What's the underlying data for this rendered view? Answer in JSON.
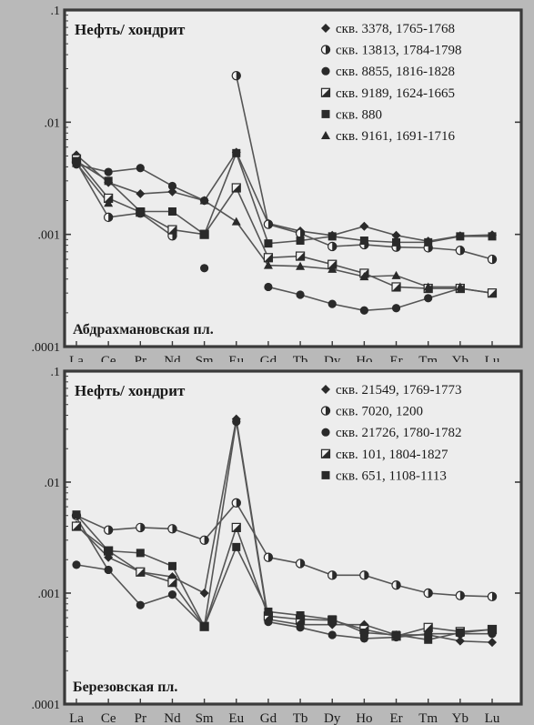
{
  "chart_data": [
    {
      "type": "line",
      "title": "Нефть/ хондрит",
      "subtitle": "Абдрахмановская пл.",
      "y_scale": "log",
      "ylim": [
        0.0001,
        0.1
      ],
      "y_ticks": [
        ".1",
        ".01",
        ".001",
        ".0001"
      ],
      "categories": [
        "La",
        "Ce",
        "Pr",
        "Nd",
        "Sm",
        "Eu",
        "Gd",
        "Tb",
        "Dy",
        "Ho",
        "Er",
        "Tm",
        "Yb",
        "Lu"
      ],
      "legend_position": "top-right",
      "series": [
        {
          "name": "скв. 3378, 1765-1768",
          "marker": "diamond",
          "values": [
            0.0051,
            0.0029,
            0.0023,
            0.0024,
            0.002,
            0.0054,
            0.00125,
            0.00107,
            0.00098,
            0.00118,
            0.00098,
            0.00087,
            0.00097,
            0.00099
          ]
        },
        {
          "name": "скв. 13813, 1784-1798",
          "marker": "halfcircle",
          "values": [
            0.0044,
            0.00142,
            0.00155,
            0.00097,
            null,
            0.026,
            0.00123,
            0.00102,
            0.00078,
            0.00081,
            0.00077,
            0.00076,
            0.00072,
            0.0006
          ]
        },
        {
          "name": "скв. 8855, 1816-1828",
          "marker": "circle",
          "values": [
            0.0042,
            0.0036,
            0.0039,
            0.0027,
            0.002,
            null,
            0.00034,
            0.00029,
            0.00024,
            0.00021,
            0.00022,
            0.00027,
            0.00033,
            0.0003
          ]
        },
        {
          "name": "скв. 9189, 1624-1665",
          "marker": "halfsquare",
          "values": [
            0.0047,
            0.0021,
            0.00158,
            0.0011,
            0.001,
            0.0026,
            0.00062,
            0.00064,
            0.00054,
            0.00045,
            0.00034,
            0.00033,
            0.00033,
            0.0003
          ]
        },
        {
          "name": "скв. 880",
          "marker": "square",
          "values": [
            0.0045,
            0.003,
            0.0016,
            0.0016,
            0.001,
            0.0053,
            0.00083,
            0.00088,
            0.00096,
            0.00088,
            0.00085,
            0.00085,
            0.00096,
            0.00096
          ]
        },
        {
          "name": "скв. 9161, 1691-1716",
          "marker": "triangle",
          "values": [
            0.0043,
            0.0019,
            null,
            null,
            0.002,
            0.0013,
            0.00053,
            0.00052,
            0.00049,
            0.00042,
            0.00043,
            0.00034,
            0.00034,
            null
          ]
        },
        {
          "name": "",
          "marker": "circle",
          "values": [
            null,
            null,
            null,
            null,
            0.0005,
            null,
            null,
            null,
            null,
            null,
            null,
            null,
            null,
            null
          ]
        }
      ]
    },
    {
      "type": "line",
      "title": "Нефть/ хондрит",
      "subtitle": "Березовская пл.",
      "y_scale": "log",
      "ylim": [
        0.0001,
        0.1
      ],
      "y_ticks": [
        ".1",
        ".01",
        ".001",
        ".0001"
      ],
      "categories": [
        "La",
        "Ce",
        "Pr",
        "Nd",
        "Sm",
        "Eu",
        "Gd",
        "Tb",
        "Dy",
        "Ho",
        "Er",
        "Tm",
        "Yb",
        "Lu"
      ],
      "legend_position": "top-right",
      "series": [
        {
          "name": "скв. 21549, 1769-1773",
          "marker": "diamond",
          "values": [
            0.0041,
            0.0021,
            0.00155,
            0.0014,
            0.001,
            0.037,
            0.00058,
            0.00052,
            0.00052,
            0.00052,
            0.00042,
            0.00042,
            0.00037,
            0.00036
          ]
        },
        {
          "name": "скв. 7020, 1200",
          "marker": "halfcircle",
          "values": [
            0.005,
            0.0037,
            0.0039,
            0.0038,
            0.003,
            0.0065,
            0.0021,
            0.00185,
            0.00145,
            0.00145,
            0.00118,
            0.001,
            0.00095,
            0.00093
          ]
        },
        {
          "name": "скв. 21726, 1780-1782",
          "marker": "circle",
          "values": [
            0.0018,
            0.00162,
            0.00078,
            0.00097,
            0.0005,
            0.035,
            0.00055,
            0.00049,
            0.00042,
            0.00039,
            0.0004,
            0.00043,
            0.00043,
            0.00043
          ]
        },
        {
          "name": "скв. 101, 1804-1827",
          "marker": "halfsquare",
          "values": [
            0.004,
            0.0024,
            0.00155,
            0.00125,
            0.0005,
            0.0039,
            0.00062,
            0.00058,
            0.00057,
            0.00047,
            0.00041,
            0.00049,
            0.00045,
            0.00047
          ]
        },
        {
          "name": "скв. 651, 1108-1113",
          "marker": "square",
          "values": [
            0.0051,
            0.0024,
            0.0023,
            0.00175,
            0.0005,
            0.0026,
            0.00068,
            0.00063,
            0.00058,
            0.00044,
            0.00042,
            0.00038,
            0.00044,
            0.00047
          ]
        },
        {
          "name": "",
          "marker": "none",
          "values": [
            0.0048,
            0.0016,
            null,
            null,
            0.0005,
            null,
            null,
            null,
            null,
            null,
            null,
            null,
            null,
            null
          ]
        }
      ]
    }
  ]
}
